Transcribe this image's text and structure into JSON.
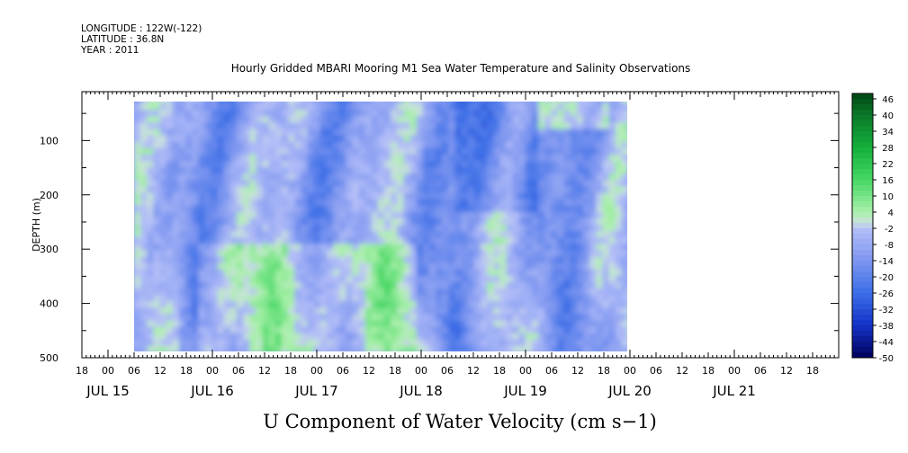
{
  "header": {
    "longitude": "LONGITUDE : 122W(-122)",
    "latitude": "LATITUDE : 36.8N",
    "year": "YEAR : 2011"
  },
  "chart_data": {
    "type": "heatmap",
    "title": "Hourly Gridded MBARI Mooring M1 Sea Water Temperature and Salinity Observations",
    "xlabel": "U Component of Water Velocity (cm s−1)",
    "ylabel": "DEPTH (m)",
    "x_range": [
      "2011-07-14T18:00",
      "2011-07-22T00:00"
    ],
    "data_extent_x": [
      "2011-07-15T06:00",
      "2011-07-20T04:00"
    ],
    "data_extent_depth": [
      20,
      490
    ],
    "ylim": [
      500,
      10
    ],
    "y_reversed": true,
    "y_ticks": [
      100,
      200,
      300,
      400,
      500
    ],
    "x_hour_ticks": [
      "18",
      "00",
      "06",
      "12",
      "18",
      "00",
      "06",
      "12",
      "18",
      "00",
      "06",
      "12",
      "18",
      "00",
      "06",
      "12",
      "18",
      "00",
      "06",
      "12",
      "18",
      "00",
      "06",
      "12",
      "18",
      "00",
      "06",
      "12",
      "18"
    ],
    "x_day_labels": [
      "JUL 15",
      "JUL 16",
      "JUL 17",
      "JUL 18",
      "JUL 19",
      "JUL 20",
      "JUL 21"
    ],
    "colorbar": {
      "tick_labels": [
        "46",
        "40",
        "34",
        "28",
        "22",
        "16",
        "10",
        "4",
        "-2",
        "-8",
        "-14",
        "-20",
        "-26",
        "-32",
        "-38",
        "-44",
        "-50"
      ],
      "min": -50,
      "max": 48,
      "step": 2
    },
    "field_description_points": {
      "notes": "approximate velocity pattern: mostly -14 to 10 cm/s, stronger positive (green) near bottom Jul 16-18, stronger negative (blue) near surface Jul 18 12h-Jul 19"
    }
  }
}
